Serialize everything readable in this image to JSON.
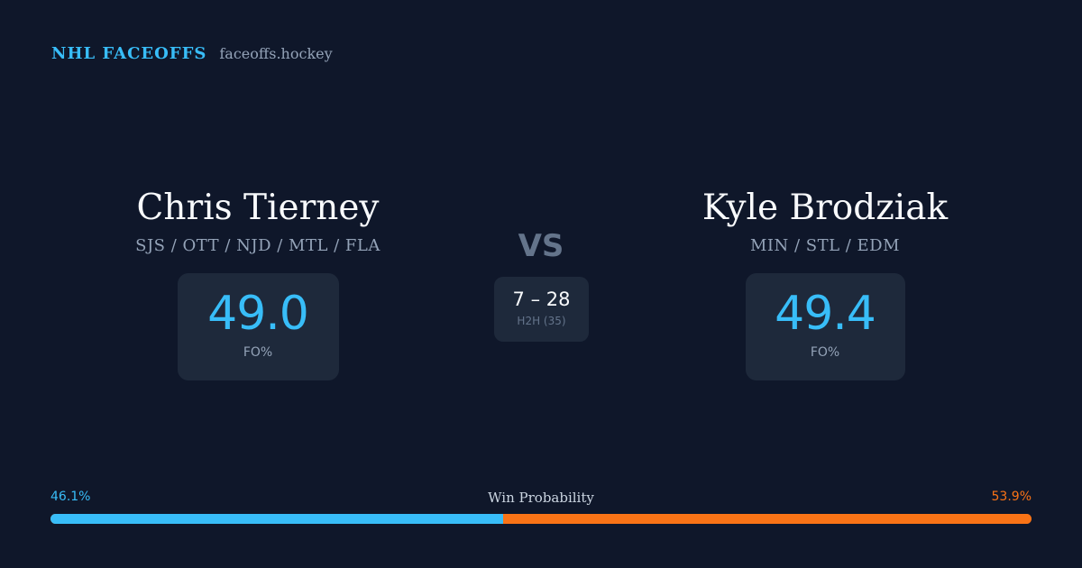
{
  "header": {
    "title": "NHL FACEOFFS",
    "domain": "faceoffs.hockey"
  },
  "player_left": {
    "name": "Chris Tierney",
    "teams": "SJS / OTT / NJD / MTL / FLA",
    "fo_pct": "49.0",
    "fo_label": "FO%"
  },
  "player_right": {
    "name": "Kyle Brodziak",
    "teams": "MIN / STL / EDM",
    "fo_pct": "49.4",
    "fo_label": "FO%"
  },
  "matchup": {
    "vs": "VS",
    "h2h_score": "7 – 28",
    "h2h_label": "H2H (35)"
  },
  "win_probability": {
    "title": "Win Probability",
    "left_pct": "46.1%",
    "right_pct": "53.9%",
    "left_fraction": 0.461,
    "right_fraction": 0.539
  },
  "colors": {
    "background": "#0f172a",
    "card": "#1e293b",
    "accent_left": "#38bdf8",
    "accent_right": "#f97316",
    "muted": "#94a3b8"
  }
}
